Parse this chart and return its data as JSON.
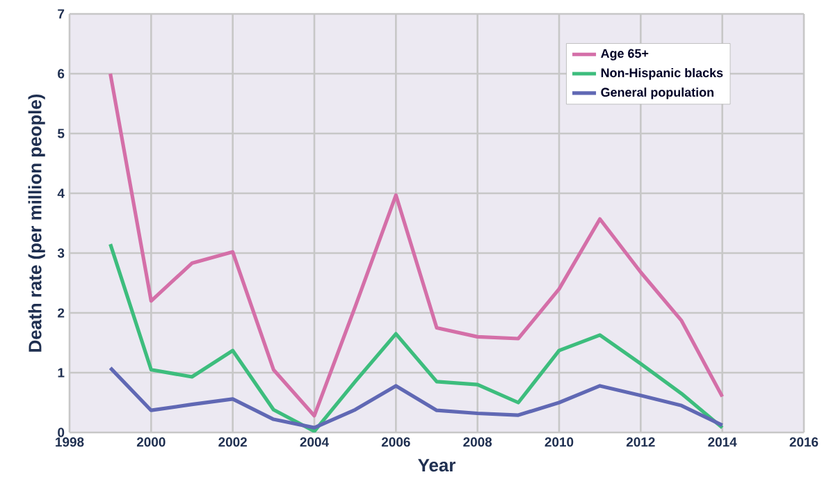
{
  "chart_data": {
    "type": "line",
    "xlabel": "Year",
    "ylabel": "Death rate (per million people)",
    "x": [
      1999,
      2000,
      2001,
      2002,
      2003,
      2004,
      2005,
      2006,
      2007,
      2008,
      2009,
      2010,
      2011,
      2012,
      2013,
      2014
    ],
    "series": [
      {
        "name": "Age 65+",
        "color": "#d46fa8",
        "values": [
          6.0,
          2.2,
          2.83,
          3.02,
          1.05,
          0.28,
          2.1,
          3.97,
          1.75,
          1.6,
          1.57,
          2.4,
          3.57,
          2.68,
          1.87,
          0.6
        ]
      },
      {
        "name": "Non-Hispanic blacks",
        "color": "#3dbd7d",
        "values": [
          3.15,
          1.05,
          0.93,
          1.37,
          0.38,
          0.02,
          0.85,
          1.65,
          0.85,
          0.8,
          0.5,
          1.37,
          1.63,
          1.15,
          0.65,
          0.08
        ]
      },
      {
        "name": "General population",
        "color": "#6068b4",
        "values": [
          1.08,
          0.37,
          0.47,
          0.56,
          0.22,
          0.08,
          0.38,
          0.78,
          0.37,
          0.32,
          0.29,
          0.5,
          0.78,
          0.62,
          0.45,
          0.12
        ]
      }
    ],
    "xlim": [
      1998,
      2016
    ],
    "xticks": [
      1998,
      2000,
      2002,
      2004,
      2006,
      2008,
      2010,
      2012,
      2014,
      2016
    ],
    "ylim": [
      0,
      7
    ],
    "yticks": [
      0,
      1,
      2,
      3,
      4,
      5,
      6,
      7
    ],
    "grid": true,
    "legend": "top right",
    "marker": "none",
    "line_style": "solid"
  }
}
